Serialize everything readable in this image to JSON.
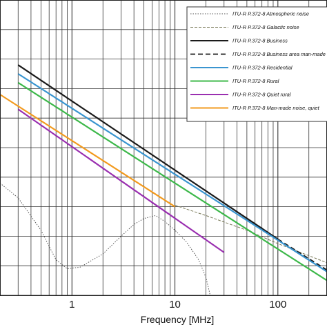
{
  "chart_data": {
    "type": "line",
    "title": "",
    "xlabel": "Frequency [MHz]",
    "ylabel": "",
    "x_scale": "log",
    "xlim": [
      0.2,
      300
    ],
    "ylim": [
      0,
      100
    ],
    "x_ticks": [
      {
        "value": 1,
        "label": "1"
      },
      {
        "value": 10,
        "label": "10"
      },
      {
        "value": 100,
        "label": "100"
      }
    ],
    "grid": true,
    "legend_position": "top-right",
    "series": [
      {
        "name": "ITU-R P.372-8 Atmospheric noise",
        "color": "#555555",
        "dash": "1.5,2",
        "width": 1,
        "points": [
          [
            0.2,
            38
          ],
          [
            0.3,
            33
          ],
          [
            0.5,
            22
          ],
          [
            0.7,
            12
          ],
          [
            0.9,
            9
          ],
          [
            1.2,
            9.5
          ],
          [
            2,
            14
          ],
          [
            3,
            20
          ],
          [
            4,
            24
          ],
          [
            5,
            26
          ],
          [
            6.5,
            27
          ],
          [
            8,
            25
          ],
          [
            10,
            22
          ],
          [
            13,
            18
          ],
          [
            17,
            12
          ],
          [
            20,
            6
          ],
          [
            22,
            0
          ]
        ]
      },
      {
        "name": "ITU-R P.372-8 Galactic noise",
        "color": "#777755",
        "dash": "4,2",
        "width": 1,
        "points": [
          [
            10,
            30.5
          ],
          [
            20,
            27
          ],
          [
            50,
            22
          ],
          [
            100,
            17.5
          ],
          [
            300,
            11
          ]
        ]
      },
      {
        "name": "ITU-R P.372-8 Business",
        "color": "#1a1a1a",
        "dash": "",
        "width": 2.2,
        "points": [
          [
            0.3,
            78
          ],
          [
            100,
            19
          ]
        ]
      },
      {
        "name": "ITU-R P.372-8 Business area man-made noise",
        "color": "#1a1a1a",
        "dash": "7,4",
        "width": 2,
        "points": [
          [
            100,
            19
          ],
          [
            300,
            8.5
          ]
        ]
      },
      {
        "name": "ITU-R P.372-8 Residential",
        "color": "#3a95d0",
        "dash": "",
        "width": 2.2,
        "points": [
          [
            0.3,
            75
          ],
          [
            300,
            8
          ]
        ]
      },
      {
        "name": "ITU-R P.372-8 Rural",
        "color": "#3db84a",
        "dash": "",
        "width": 2.2,
        "points": [
          [
            0.3,
            72
          ],
          [
            300,
            5
          ]
        ]
      },
      {
        "name": "ITU-R P.372-8 Quiet rural",
        "color": "#9a2fb0",
        "dash": "",
        "width": 2.2,
        "points": [
          [
            0.3,
            63
          ],
          [
            30,
            14.5
          ]
        ]
      },
      {
        "name": "ITU-R P.372-8 Man-made noise, quiet",
        "color": "#f29a1e",
        "dash": "",
        "width": 2.2,
        "points": [
          [
            0.2,
            68
          ],
          [
            10,
            30
          ]
        ]
      }
    ]
  }
}
